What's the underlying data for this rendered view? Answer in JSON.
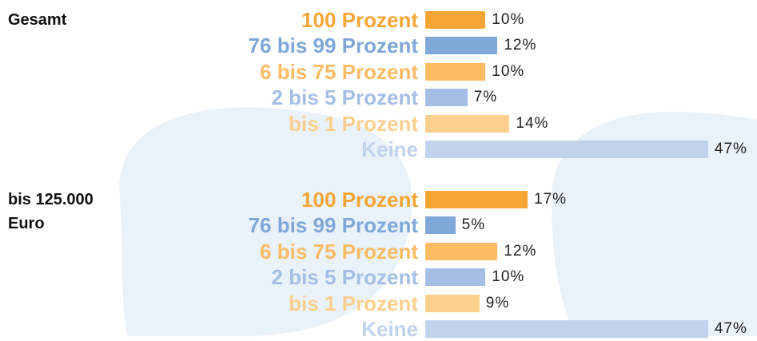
{
  "chart_data": [
    {
      "type": "bar",
      "title": "Gesamt",
      "categories": [
        "100 Prozent",
        "76 bis 99 Prozent",
        "6 bis 75 Prozent",
        "2 bis 5 Prozent",
        "bis 1 Prozent",
        "Keine"
      ],
      "values": [
        10,
        12,
        10,
        7,
        14,
        47
      ],
      "value_labels": [
        "10%",
        "12%",
        "10%",
        "7%",
        "14%",
        "47%"
      ],
      "colors": [
        "#f7a535",
        "#7fa8d8",
        "#fdbb63",
        "#a5bfe4",
        "#fdcf8e",
        "#c1d3ec"
      ]
    },
    {
      "type": "bar",
      "title": "bis 125.000 Euro",
      "categories": [
        "100 Prozent",
        "76 bis 99 Prozent",
        "6 bis 75 Prozent",
        "2 bis 5 Prozent",
        "bis 1 Prozent",
        "Keine"
      ],
      "values": [
        17,
        5,
        12,
        10,
        9,
        47
      ],
      "value_labels": [
        "17%",
        "5%",
        "12%",
        "10%",
        "9%",
        "47%"
      ],
      "colors": [
        "#f7a535",
        "#7fa8d8",
        "#fdbb63",
        "#a5bfe4",
        "#fdcf8e",
        "#c1d3ec"
      ]
    }
  ]
}
